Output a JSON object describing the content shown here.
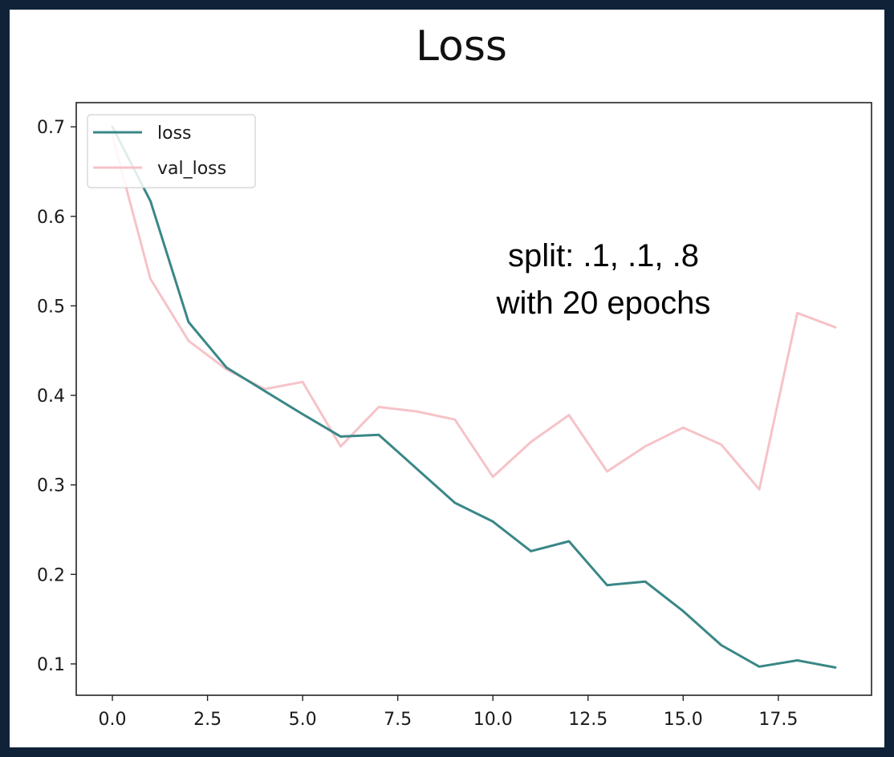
{
  "chart_data": {
    "type": "line",
    "title": "Loss",
    "xlabel": "",
    "ylabel": "",
    "x": [
      0,
      1,
      2,
      3,
      4,
      5,
      6,
      7,
      8,
      9,
      10,
      11,
      12,
      13,
      14,
      15,
      16,
      17,
      18,
      19
    ],
    "xlim": [
      -0.95,
      19.95
    ],
    "ylim": [
      0.065,
      0.727
    ],
    "xticks": [
      0.0,
      2.5,
      5.0,
      7.5,
      10.0,
      12.5,
      15.0,
      17.5
    ],
    "xtick_labels": [
      "0.0",
      "2.5",
      "5.0",
      "7.5",
      "10.0",
      "12.5",
      "15.0",
      "17.5"
    ],
    "yticks": [
      0.1,
      0.2,
      0.3,
      0.4,
      0.5,
      0.6,
      0.7
    ],
    "ytick_labels": [
      "0.1",
      "0.2",
      "0.3",
      "0.4",
      "0.5",
      "0.6",
      "0.7"
    ],
    "series": [
      {
        "name": "loss",
        "color": "#3a8787",
        "values": [
          0.7,
          0.617,
          0.482,
          0.431,
          0.405,
          0.379,
          0.354,
          0.356,
          0.318,
          0.28,
          0.259,
          0.226,
          0.237,
          0.188,
          0.192,
          0.159,
          0.121,
          0.097,
          0.104,
          0.096
        ]
      },
      {
        "name": "val_loss",
        "color": "#f6c3c8",
        "values": [
          0.69,
          0.53,
          0.461,
          0.429,
          0.407,
          0.415,
          0.343,
          0.387,
          0.382,
          0.373,
          0.309,
          0.348,
          0.378,
          0.315,
          0.343,
          0.364,
          0.345,
          0.295,
          0.492,
          0.476
        ]
      }
    ],
    "legend": "top-left",
    "grid": false,
    "annotations": [
      "split: .1, .1, .8",
      "with 20 epochs"
    ]
  }
}
